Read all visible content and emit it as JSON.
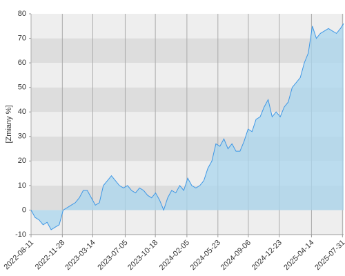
{
  "chart_data": {
    "type": "area",
    "y_label": "[Zmiany %]",
    "x": [
      "2022-08-11",
      "2022-08-25",
      "2022-09-08",
      "2022-09-22",
      "2022-10-06",
      "2022-10-20",
      "2022-11-03",
      "2022-11-17",
      "2022-12-01",
      "2022-12-15",
      "2022-12-29",
      "2023-01-12",
      "2023-01-26",
      "2023-02-09",
      "2023-02-23",
      "2023-03-09",
      "2023-03-23",
      "2023-04-06",
      "2023-04-20",
      "2023-05-04",
      "2023-05-18",
      "2023-06-01",
      "2023-06-15",
      "2023-06-29",
      "2023-07-13",
      "2023-07-27",
      "2023-08-10",
      "2023-08-24",
      "2023-09-07",
      "2023-09-21",
      "2023-10-05",
      "2023-10-19",
      "2023-11-02",
      "2023-11-16",
      "2023-11-30",
      "2023-12-14",
      "2023-12-28",
      "2024-01-11",
      "2024-01-25",
      "2024-02-08",
      "2024-02-22",
      "2024-03-07",
      "2024-03-21",
      "2024-04-04",
      "2024-04-18",
      "2024-05-02",
      "2024-05-16",
      "2024-05-30",
      "2024-06-13",
      "2024-06-27",
      "2024-07-11",
      "2024-07-25",
      "2024-08-08",
      "2024-08-22",
      "2024-09-05",
      "2024-09-19",
      "2024-10-03",
      "2024-10-17",
      "2024-10-31",
      "2024-11-14",
      "2024-11-28",
      "2024-12-12",
      "2024-12-26",
      "2025-01-09",
      "2025-01-23",
      "2025-02-06",
      "2025-02-20",
      "2025-03-06",
      "2025-03-20",
      "2025-04-03",
      "2025-04-17",
      "2025-05-01",
      "2025-05-15",
      "2025-05-29",
      "2025-06-12",
      "2025-06-26",
      "2025-07-10",
      "2025-07-24",
      "2025-08-04"
    ],
    "series": [
      {
        "color": "#3d97e6",
        "fill": "#a9d6ee",
        "values": [
          0,
          -3,
          -4,
          -6,
          -5,
          -8,
          -7,
          -6,
          0,
          1,
          2,
          3,
          5,
          8,
          8,
          5,
          2,
          3,
          10,
          12,
          14,
          12,
          10,
          9,
          10,
          8,
          7,
          9,
          8,
          6,
          5,
          7,
          4,
          0,
          5,
          8,
          7,
          10,
          8,
          13,
          10,
          9,
          10,
          12,
          17,
          20,
          27,
          26,
          29,
          25,
          27,
          24,
          24,
          28,
          33,
          32,
          37,
          38,
          42,
          45,
          38,
          40,
          38,
          42,
          44,
          50,
          52,
          54,
          60,
          64,
          75,
          70,
          72,
          73,
          74,
          73,
          72,
          74,
          76
        ]
      }
    ],
    "xlim": [
      "2022-08-11",
      "2025-08-04"
    ],
    "xticks": [
      "2022-08-11",
      "2022-11-28",
      "2023-03-14",
      "2023-07-05",
      "2023-10-18",
      "2024-02-05",
      "2024-05-23",
      "2024-09-06",
      "2024-12-23",
      "2025-04-14",
      "2025-07-31"
    ],
    "ylim": [
      -10,
      80
    ],
    "yticks": [
      -10,
      0,
      10,
      20,
      30,
      40,
      50,
      60,
      70,
      80
    ],
    "band_colors": [
      "#eeeeee",
      "#dddddd"
    ],
    "grid": true
  }
}
